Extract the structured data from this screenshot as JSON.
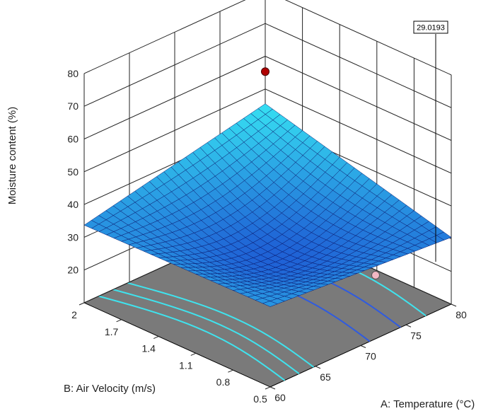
{
  "chart_data": {
    "type": "surface3d",
    "zlabel": "Moisture content (%)",
    "xlabel": "A: Temperature (°C)",
    "ylabel": "B: Air Velocity (m/s)",
    "z_ticks": [
      "20",
      "30",
      "40",
      "50",
      "60",
      "70",
      "80"
    ],
    "x_ticks": [
      "60",
      "65",
      "70",
      "75",
      "80"
    ],
    "y_ticks": [
      "0.5",
      "0.8",
      "1.1",
      "1.4",
      "1.7",
      "2"
    ],
    "xlim": [
      60,
      80
    ],
    "ylim": [
      0.5,
      2
    ],
    "zlim": [
      20,
      80
    ],
    "grid": true,
    "colors": {
      "surface_low": "#1427c8",
      "surface_high": "#39f0f6",
      "floor": "#7a7a7a",
      "design_point_high": "#b00000",
      "design_point_low": "#f2b8c4"
    },
    "annotation": "29.0193",
    "surface_corners": [
      {
        "temperature": 60,
        "air_velocity": 0.5,
        "moisture": 34.5
      },
      {
        "temperature": 80,
        "air_velocity": 0.5,
        "moisture": 30.4
      },
      {
        "temperature": 80,
        "air_velocity": 2.0,
        "moisture": 45.5
      },
      {
        "temperature": 60,
        "air_velocity": 2.0,
        "moisture": 33.7
      }
    ],
    "design_points": [
      {
        "temperature": 80,
        "air_velocity": 2.0,
        "moisture": 55.3,
        "position": "above surface"
      },
      {
        "temperature": 60,
        "air_velocity": 0.5,
        "moisture": 11.9,
        "position": "below surface"
      }
    ]
  }
}
